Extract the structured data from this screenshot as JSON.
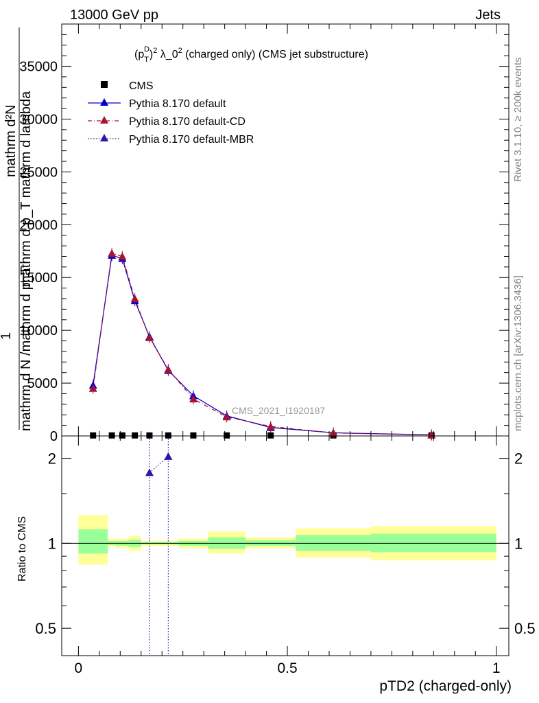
{
  "header": {
    "left": "13000 GeV pp",
    "right": "Jets"
  },
  "side_labels": {
    "rivet": "Rivet 3.1.10, ≥ 200k events",
    "mcplots": "mcplots.cern.ch [arXiv:1306.3436]"
  },
  "chart_data": [
    {
      "type": "line",
      "panel": "main",
      "title": "(p_T^D)^2 λ_0^2 (charged only) (CMS jet substructure)",
      "title_parts": {
        "base": "(p",
        "sup": "D",
        "sub": "T",
        "rest": ")",
        "sup2": "2",
        "tail": " λ_0",
        "sup3": "2",
        "end": " (charged only) (CMS jet substructure)"
      },
      "ylabel_lines": [
        "mathrm d²N",
        "mathrm d p_T mathrm d lambda",
        "1",
        "mathrm d N /mathrm d p_T"
      ],
      "watermark": "CMS_2021_I1920187",
      "xlim": [
        -0.04,
        1.03
      ],
      "ylim": [
        0,
        39000
      ],
      "y_ticks": [
        0,
        5000,
        10000,
        15000,
        20000,
        25000,
        30000,
        35000
      ],
      "y_tick_labels": [
        "0",
        "5000",
        "10000",
        "15000",
        "20000",
        "25000",
        "30000",
        "35000"
      ],
      "legend_position": "top-left",
      "legend": [
        {
          "label": "CMS",
          "marker": "square",
          "color": "#000000",
          "style": "none"
        },
        {
          "label": "Pythia 8.170 default",
          "marker": "triangle",
          "color": "#0000cc",
          "style": "solid"
        },
        {
          "label": "Pythia 8.170 default-CD",
          "marker": "triangle",
          "color": "#aa1133",
          "style": "dashdot"
        },
        {
          "label": "Pythia 8.170 default-MBR",
          "marker": "triangle",
          "color": "#3311aa",
          "style": "dotted"
        }
      ],
      "cms_x": [
        0.035,
        0.08,
        0.105,
        0.135,
        0.17,
        0.215,
        0.275,
        0.355,
        0.46,
        0.61,
        0.845
      ],
      "cms_y": [
        50,
        50,
        50,
        50,
        50,
        50,
        50,
        50,
        50,
        50,
        50
      ],
      "series": [
        {
          "name": "Pythia 8.170 default",
          "x": [
            0.035,
            0.08,
            0.105,
            0.135,
            0.17,
            0.215,
            0.275,
            0.355,
            0.46,
            0.61,
            0.845
          ],
          "y": [
            4800,
            17100,
            16800,
            12800,
            9400,
            6200,
            3800,
            1900,
            800,
            300,
            100
          ]
        },
        {
          "name": "Pythia 8.170 default-CD",
          "x": [
            0.035,
            0.08,
            0.105,
            0.135,
            0.17,
            0.215,
            0.275,
            0.355,
            0.46,
            0.61,
            0.845
          ],
          "y": [
            4500,
            17300,
            17000,
            13000,
            9300,
            6300,
            3500,
            1800,
            900,
            280,
            90
          ]
        }
      ]
    },
    {
      "type": "line",
      "panel": "ratio",
      "ylabel": "Ratio to CMS",
      "xlabel": "pTD2 (charged-only)",
      "xlim": [
        -0.04,
        1.03
      ],
      "ylim_log": [
        0.4,
        2.4
      ],
      "x_ticks": [
        0,
        0.5,
        1
      ],
      "x_tick_labels": [
        "0",
        "0.5",
        "1"
      ],
      "y_ticks": [
        0.5,
        1,
        2
      ],
      "y_tick_labels": [
        "0.5",
        "1",
        "2"
      ],
      "bins": [
        0,
        0.07,
        0.09,
        0.12,
        0.15,
        0.19,
        0.24,
        0.31,
        0.4,
        0.52,
        0.7,
        1.0
      ],
      "band_outer": [
        [
          0.84,
          1.26
        ],
        [
          0.97,
          1.04
        ],
        [
          0.96,
          1.04
        ],
        [
          0.94,
          1.06
        ],
        [
          0.98,
          1.02
        ],
        [
          0.98,
          1.02
        ],
        [
          0.96,
          1.04
        ],
        [
          0.92,
          1.1
        ],
        [
          0.96,
          1.05
        ],
        [
          0.89,
          1.13
        ],
        [
          0.87,
          1.15
        ]
      ],
      "band_inner": [
        [
          0.92,
          1.12
        ],
        [
          0.985,
          1.02
        ],
        [
          0.98,
          1.02
        ],
        [
          0.97,
          1.03
        ],
        [
          0.99,
          1.01
        ],
        [
          0.99,
          1.01
        ],
        [
          0.98,
          1.02
        ],
        [
          0.955,
          1.05
        ],
        [
          0.98,
          1.025
        ],
        [
          0.94,
          1.07
        ],
        [
          0.93,
          1.08
        ]
      ],
      "mbr_points": {
        "name": "Pythia 8.170 default-MBR",
        "x": [
          0.17,
          0.215
        ],
        "y": [
          1.78,
          2.03
        ]
      },
      "mbr_drop_x": [
        0.17,
        0.215
      ]
    }
  ]
}
